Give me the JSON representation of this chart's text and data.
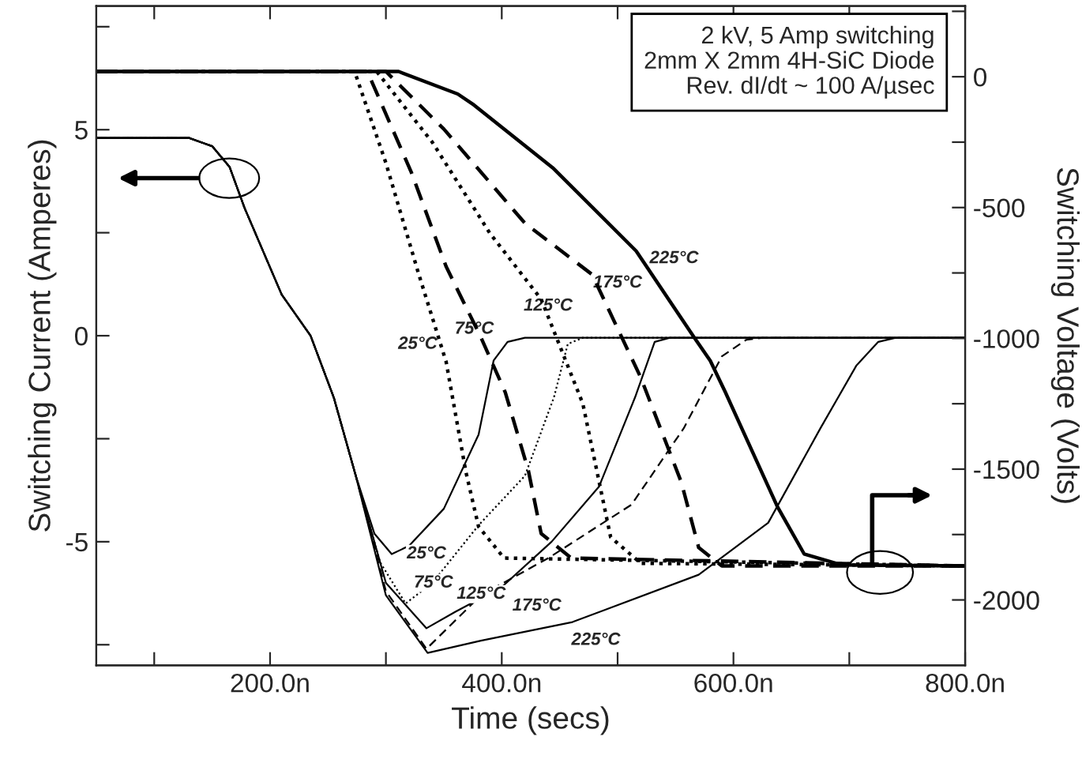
{
  "chart_data": {
    "type": "line",
    "xlabel": "Time (secs)",
    "ylabel": "Switching Current (Amperes)",
    "y2label": "Switching Voltage (Volts)",
    "xlim": [
      50,
      800
    ],
    "xticks": [
      {
        "value": 100,
        "label": null
      },
      {
        "value": 200,
        "label": "200.0n"
      },
      {
        "value": 300,
        "label": null
      },
      {
        "value": 400,
        "label": "400.0n"
      },
      {
        "value": 500,
        "label": null
      },
      {
        "value": 600,
        "label": "600.0n"
      },
      {
        "value": 700,
        "label": null
      },
      {
        "value": 800,
        "label": "800.0n"
      }
    ],
    "ylim": [
      -8,
      8
    ],
    "yticks": [
      {
        "value": -7.5,
        "label": null
      },
      -5,
      {
        "value": -2.5,
        "label": null
      },
      0,
      {
        "value": 2.5,
        "label": null
      },
      5,
      {
        "value": 7.5,
        "label": null
      }
    ],
    "y2lim": [
      -2250,
      270
    ],
    "y2ticks": [
      -2000,
      {
        "value": -1750,
        "label": null
      },
      -1500,
      {
        "value": -1250,
        "label": null
      },
      -1000,
      {
        "value": -750,
        "label": null
      },
      -500,
      {
        "value": -250,
        "label": null
      },
      0,
      {
        "value": 250,
        "label": null
      }
    ],
    "grid": false,
    "legend": false,
    "marker": "none",
    "series": [
      {
        "color": "#000000",
        "line_style": "solid",
        "x": [
          50,
          130,
          150,
          165,
          178,
          210,
          235,
          255,
          274,
          290,
          305,
          320,
          350,
          380,
          393,
          405,
          420,
          800
        ],
        "values": [
          4.8,
          4.8,
          4.6,
          4.1,
          3.1,
          1.0,
          0,
          -1.5,
          -3.4,
          -4.8,
          -5.3,
          -5.1,
          -4.2,
          -2.4,
          -0.6,
          -0.15,
          -0.05,
          -0.05
        ]
      },
      {
        "color": "#000000",
        "line_style": "dotted",
        "x": [
          50,
          130,
          150,
          165,
          178,
          210,
          235,
          255,
          274,
          295,
          317,
          340,
          380,
          420,
          445,
          457,
          470,
          800
        ],
        "values": [
          4.8,
          4.8,
          4.6,
          4.1,
          3.1,
          1.0,
          0,
          -1.5,
          -3.4,
          -5.5,
          -6.5,
          -6.0,
          -4.6,
          -3.4,
          -1.5,
          -0.2,
          -0.05,
          -0.05
        ]
      },
      {
        "color": "#000000",
        "line_style": "solid",
        "x": [
          50,
          130,
          150,
          165,
          178,
          210,
          235,
          255,
          274,
          300,
          335,
          360,
          400,
          443,
          484,
          515,
          532,
          545,
          800
        ],
        "values": [
          4.8,
          4.8,
          4.6,
          4.1,
          3.1,
          1.0,
          0,
          -1.5,
          -3.4,
          -6.0,
          -7.1,
          -6.7,
          -6.1,
          -5.0,
          -3.66,
          -1.5,
          -0.15,
          -0.05,
          -0.05
        ]
      },
      {
        "color": "#000000",
        "line_style": "dashed",
        "x": [
          50,
          130,
          150,
          165,
          178,
          210,
          235,
          255,
          274,
          300,
          335,
          382,
          440,
          512,
          557,
          590,
          611,
          625,
          800
        ],
        "values": [
          4.8,
          4.8,
          4.6,
          4.1,
          3.1,
          1.0,
          0,
          -1.5,
          -3.4,
          -6.2,
          -7.6,
          -6.3,
          -5.4,
          -4.1,
          -2.25,
          -0.5,
          -0.1,
          -0.05,
          -0.05
        ]
      },
      {
        "color": "#000000",
        "line_style": "solid",
        "x": [
          50,
          130,
          150,
          165,
          178,
          210,
          235,
          255,
          274,
          300,
          336,
          382,
          461,
          570,
          630,
          675,
          706,
          725,
          740,
          800
        ],
        "values": [
          4.8,
          4.8,
          4.6,
          4.1,
          3.1,
          1.0,
          0,
          -1.5,
          -3.4,
          -6.3,
          -7.7,
          -7.4,
          -6.95,
          -5.8,
          -4.54,
          -2.25,
          -0.73,
          -0.15,
          -0.05,
          -0.05
        ]
      },
      {
        "color": "#000000",
        "line_style": "dotted",
        "axis": "y2",
        "x": [
          50,
          273,
          300,
          328,
          352,
          369,
          380,
          402,
          800
        ],
        "values": [
          20,
          20,
          -330,
          -750,
          -1090,
          -1510,
          -1720,
          -1840,
          -1870
        ]
      },
      {
        "color": "#000000",
        "line_style": "dashed",
        "axis": "y2",
        "x": [
          50,
          284,
          322,
          352,
          382,
          403,
          423,
          434,
          460,
          800
        ],
        "values": [
          20,
          20,
          -366,
          -726,
          -996,
          -1206,
          -1506,
          -1746,
          -1840,
          -1870
        ]
      },
      {
        "color": "#000000",
        "line_style": "dotted",
        "axis": "y2",
        "x": [
          50,
          292,
          340,
          390,
          434,
          470,
          494,
          520,
          800
        ],
        "values": [
          20,
          20,
          -250,
          -600,
          -850,
          -1250,
          -1760,
          -1860,
          -1870
        ]
      },
      {
        "color": "#000000",
        "line_style": "dashed",
        "axis": "y2",
        "x": [
          50,
          300,
          350,
          420,
          478,
          520,
          555,
          570,
          590,
          800
        ],
        "values": [
          20,
          20,
          -200,
          -560,
          -756,
          -1150,
          -1550,
          -1800,
          -1870,
          -1870
        ]
      },
      {
        "color": "#000000",
        "line_style": "solid",
        "axis": "y2",
        "x": [
          50,
          311,
          362,
          376,
          444,
          516,
          566,
          580,
          593,
          638,
          661,
          693,
          800
        ],
        "values": [
          20,
          20,
          -66,
          -108,
          -348,
          -666,
          -996,
          -1086,
          -1206,
          -1644,
          -1824,
          -1866,
          -1870
        ]
      }
    ],
    "annotations": [
      "2 kV, 5 Amp switching\n2mm X 2mm 4H-SiC Diode\nRev. dI/dt ~ 100 A/µsec",
      "25°C",
      "75°C",
      "125°C",
      "175°C",
      "225°C",
      "25°C",
      "75°C",
      "125°C",
      "175°C",
      "225°C"
    ]
  }
}
